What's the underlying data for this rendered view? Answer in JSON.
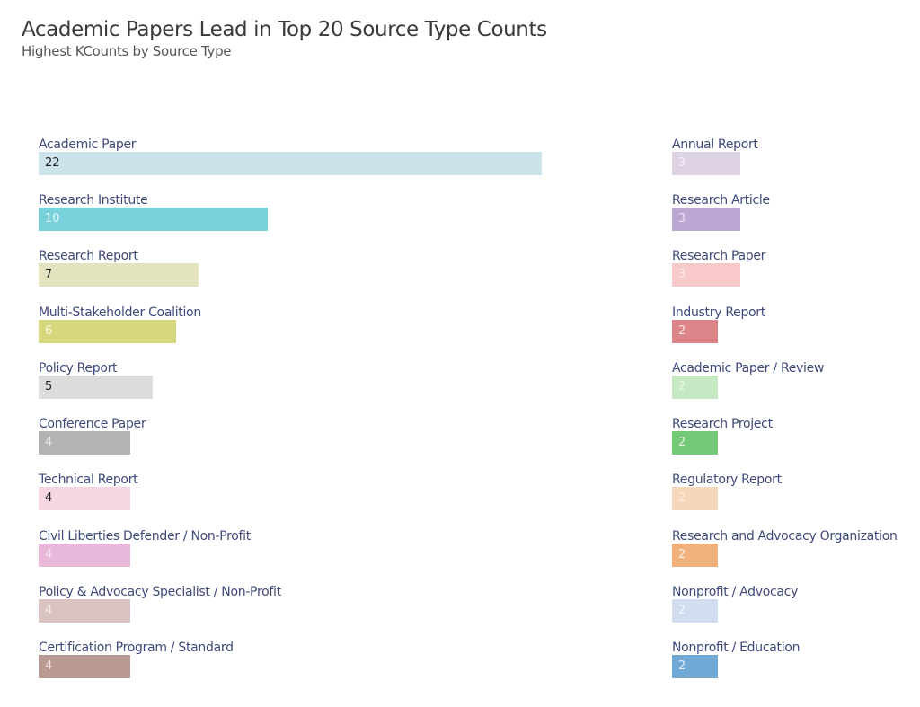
{
  "title": "Academic Papers Lead in Top 20 Source Type Counts",
  "subtitle": "Highest KCounts by Source Type",
  "chart_data": {
    "type": "bar",
    "orientation": "horizontal",
    "title": "Academic Papers Lead in Top 20 Source Type Counts",
    "subtitle": "Highest KCounts by Source Type",
    "xlabel": "",
    "ylabel": "",
    "grid": false,
    "legend": "none",
    "layout": "two columns of labeled bars, label above each bar, value inside bar",
    "categories": [
      "Academic Paper",
      "Research Institute",
      "Research Report",
      "Multi-Stakeholder Coalition",
      "Policy Report",
      "Conference Paper",
      "Technical Report",
      "Civil Liberties Defender / Non-Profit",
      "Policy & Advocacy Specialist / Non-Profit",
      "Certification Program / Standard",
      "Annual Report",
      "Research Article",
      "Research Paper",
      "Industry Report",
      "Academic Paper / Review",
      "Research Project",
      "Regulatory Report",
      "Research and Advocacy Organization",
      "Nonprofit / Advocacy",
      "Nonprofit / Education"
    ],
    "values": [
      22,
      10,
      7,
      6,
      5,
      4,
      4,
      4,
      4,
      4,
      3,
      3,
      3,
      2,
      2,
      2,
      2,
      2,
      2,
      2
    ]
  },
  "items": [
    {
      "label": "Academic Paper",
      "value": "22",
      "color": "#cbe3ea",
      "text_color": "#222222"
    },
    {
      "label": "Research Institute",
      "value": "10",
      "color": "#77d2dc",
      "text_color": "#e8f8fa"
    },
    {
      "label": "Research Report",
      "value": "7",
      "color": "#e3e3bf",
      "text_color": "#222222"
    },
    {
      "label": "Multi-Stakeholder Coalition",
      "value": "6",
      "color": "#d6d77d",
      "text_color": "#f4f4dc"
    },
    {
      "label": "Policy Report",
      "value": "5",
      "color": "#dcdcdc",
      "text_color": "#222222"
    },
    {
      "label": "Conference Paper",
      "value": "4",
      "color": "#b3b3b3",
      "text_color": "#e6e6e6"
    },
    {
      "label": "Technical Report",
      "value": "4",
      "color": "#f6d6e3",
      "text_color": "#222222"
    },
    {
      "label": "Civil Liberties Defender / Non-Profit",
      "value": "4",
      "color": "#e8b7d9",
      "text_color": "#f7e4f1"
    },
    {
      "label": "Policy & Advocacy Specialist / Non-Profit",
      "value": "4",
      "color": "#d8c3c0",
      "text_color": "#f3ebea"
    },
    {
      "label": "Certification Program / Standard",
      "value": "4",
      "color": "#ba9992",
      "text_color": "#f1e6e3"
    },
    {
      "label": "Annual Report",
      "value": "3",
      "color": "#ddd2e3",
      "text_color": "#f3eef6"
    },
    {
      "label": "Research Article",
      "value": "3",
      "color": "#bca6d2",
      "text_color": "#ece4f4"
    },
    {
      "label": "Research Paper",
      "value": "3",
      "color": "#f8c9c9",
      "text_color": "#fde9e9"
    },
    {
      "label": "Industry Report",
      "value": "2",
      "color": "#dc8589",
      "text_color": "#fbe6e7"
    },
    {
      "label": "Academic Paper / Review",
      "value": "2",
      "color": "#c6e8c2",
      "text_color": "#eaf7e8"
    },
    {
      "label": "Research Project",
      "value": "2",
      "color": "#74c976",
      "text_color": "#e3f5e3"
    },
    {
      "label": "Regulatory Report",
      "value": "2",
      "color": "#f5d7bc",
      "text_color": "#fcefe3"
    },
    {
      "label": "Research and Advocacy Organization",
      "value": "2",
      "color": "#f0b17d",
      "text_color": "#fdeedf"
    },
    {
      "label": "Nonprofit / Advocacy",
      "value": "2",
      "color": "#d2deef",
      "text_color": "#f0f4fa"
    },
    {
      "label": "Nonprofit / Education",
      "value": "2",
      "color": "#71a9d6",
      "text_color": "#e6f0f9"
    }
  ]
}
